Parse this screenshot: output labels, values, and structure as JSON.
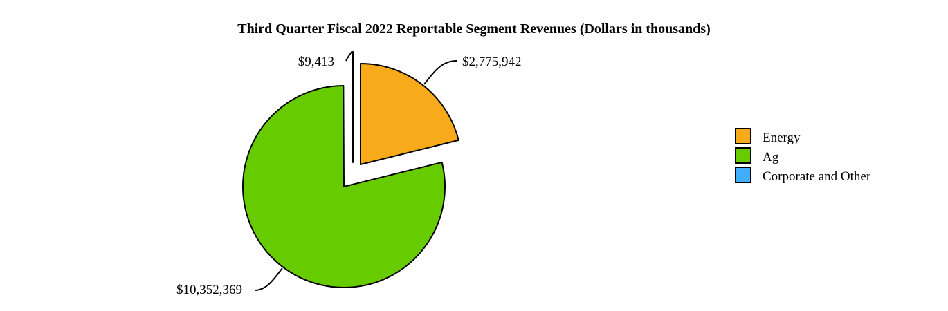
{
  "chart_data": {
    "type": "pie",
    "title": "Third Quarter Fiscal 2022 Reportable Segment Revenues (Dollars in thousands)",
    "slices": [
      {
        "name": "Energy",
        "value": 2775942,
        "label": "$2,775,942",
        "color": "#F8AA1A",
        "exploded": true
      },
      {
        "name": "Ag",
        "value": 10352369,
        "label": "$10,352,369",
        "color": "#66CC00",
        "exploded": false
      },
      {
        "name": "Corporate and Other",
        "value": 9413,
        "label": "$9,413",
        "color": "#3FAEFF",
        "exploded": true
      }
    ],
    "legend_position": "right"
  }
}
